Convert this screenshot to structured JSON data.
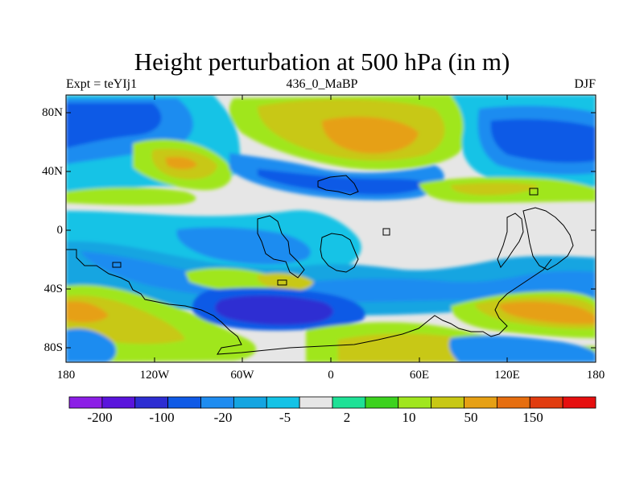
{
  "figure": {
    "title": "Height perturbation at 500 hPa (in m)",
    "subtitle_left": "Expt = teYIj1",
    "subtitle_center": "436_0_MaBP",
    "subtitle_right": "DJF",
    "lat_labels": [
      "80N",
      "40N",
      "0",
      "40S",
      "80S"
    ],
    "lon_labels": [
      "180",
      "120W",
      "60W",
      "0",
      "60E",
      "120E",
      "180"
    ]
  },
  "colorbar": {
    "colors": [
      "#8c1ee6",
      "#5a14dc",
      "#2d2dd2",
      "#0f5ae6",
      "#1e8cf0",
      "#14a5e1",
      "#14c3e6",
      "#e6e6e6",
      "#1ee196",
      "#3cd21e",
      "#a0e61e",
      "#c8c814",
      "#e6a014",
      "#e66e0f",
      "#e13c0f",
      "#e60f0f"
    ],
    "labels": [
      "-200",
      "-100",
      "-20",
      "-5",
      "2",
      "10",
      "50",
      "150"
    ]
  }
}
